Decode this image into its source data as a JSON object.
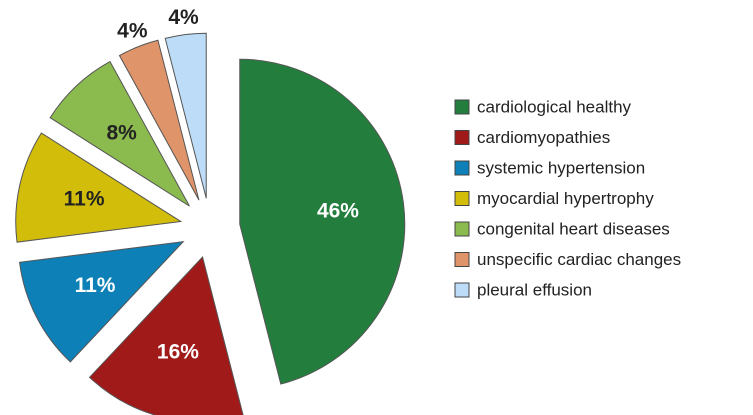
{
  "chart_data": {
    "type": "pie",
    "categories": [
      "cardiological healthy",
      "cardiomyopathies",
      "systemic hypertension",
      "myocardial hypertrophy",
      "congenital heart diseases",
      "unspecific cardiac changes",
      "pleural effusion"
    ],
    "values": [
      46,
      16,
      11,
      11,
      8,
      4,
      4
    ],
    "value_labels": [
      "46%",
      "16%",
      "11%",
      "11%",
      "8%",
      "4%",
      "4%"
    ],
    "colors": [
      "#237e3e",
      "#a11a1a",
      "#0d80b8",
      "#d1bd0a",
      "#8bba4f",
      "#e0946a",
      "#bcdcf7"
    ],
    "legend": "right"
  }
}
